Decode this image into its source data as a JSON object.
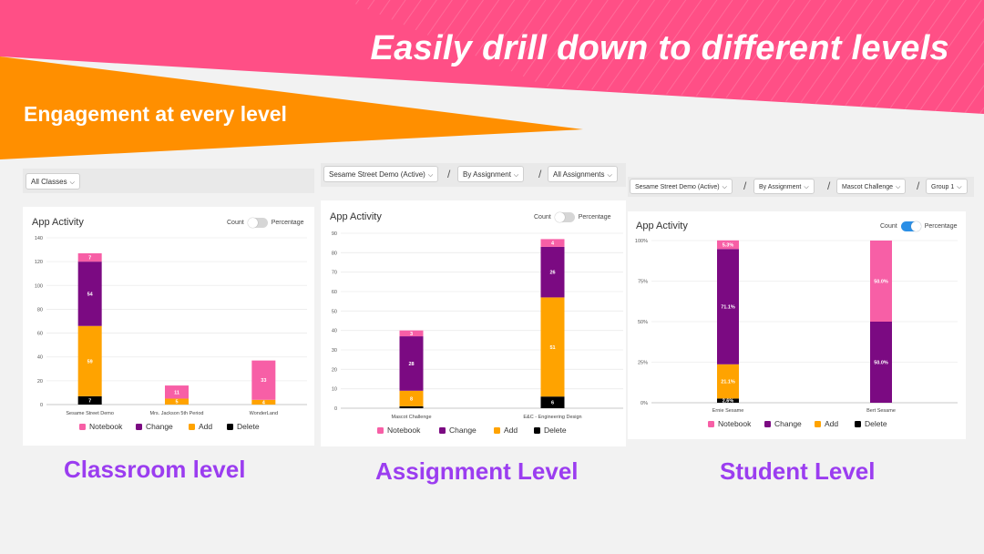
{
  "header": {
    "headline": "Easily drill down to different levels",
    "subheadline": "Engagement at every level"
  },
  "colors": {
    "pink": "#ff5a8f",
    "orange": "#ff9600",
    "notebook": "#f75fa6",
    "change": "#7b0a82",
    "add": "#ffa300",
    "delete": "#000000",
    "level_label": "#9b3df0"
  },
  "panels": [
    {
      "filters": [
        "All Classes"
      ],
      "title": "App Activity",
      "toggle": {
        "left": "Count",
        "right": "Percentage",
        "on": false
      },
      "level_label": "Classroom level"
    },
    {
      "filters": [
        "Sesame Street Demo (Active)",
        "By Assignment",
        "All Assignments"
      ],
      "title": "App Activity",
      "toggle": {
        "left": "Count",
        "right": "Percentage",
        "on": false
      },
      "level_label": "Assignment Level"
    },
    {
      "filters": [
        "Sesame Street Demo (Active)",
        "By Assignment",
        "Mascot Challenge",
        "Group 1"
      ],
      "title": "App Activity",
      "toggle": {
        "left": "Count",
        "right": "Percentage",
        "on": true
      },
      "level_label": "Student Level"
    }
  ],
  "chart_data": [
    {
      "type": "bar",
      "stacked": true,
      "categories": [
        "Sesame Street Demo",
        "Mrs. Jackson 5th Period",
        "WonderLand"
      ],
      "series": [
        {
          "name": "Delete",
          "color": "#000000",
          "values": [
            7,
            0,
            0
          ],
          "labels": [
            "7",
            "",
            ""
          ]
        },
        {
          "name": "Add",
          "color": "#ffa300",
          "values": [
            59,
            5,
            4
          ],
          "labels": [
            "59",
            "5",
            "4"
          ]
        },
        {
          "name": "Change",
          "color": "#7b0a82",
          "values": [
            54,
            0,
            0
          ],
          "labels": [
            "54",
            "",
            ""
          ]
        },
        {
          "name": "Notebook",
          "color": "#f75fa6",
          "values": [
            7,
            11,
            33
          ],
          "labels": [
            "7",
            "11",
            "33"
          ]
        }
      ],
      "yticks": [
        "0",
        "20",
        "40",
        "60",
        "80",
        "100",
        "120",
        "140"
      ],
      "ylim": [
        0,
        140
      ],
      "legend": [
        "Notebook",
        "Change",
        "Add",
        "Delete"
      ]
    },
    {
      "type": "bar",
      "stacked": true,
      "categories": [
        "Mascot Challenge",
        "E&C - Engineering Design"
      ],
      "series": [
        {
          "name": "Delete",
          "color": "#000000",
          "values": [
            1,
            6
          ],
          "labels": [
            "",
            "6"
          ]
        },
        {
          "name": "Add",
          "color": "#ffa300",
          "values": [
            8,
            51
          ],
          "labels": [
            "8",
            "51"
          ]
        },
        {
          "name": "Change",
          "color": "#7b0a82",
          "values": [
            28,
            26
          ],
          "labels": [
            "28",
            "26"
          ]
        },
        {
          "name": "Notebook",
          "color": "#f75fa6",
          "values": [
            3,
            4
          ],
          "labels": [
            "3",
            "4"
          ]
        }
      ],
      "yticks": [
        "0",
        "10",
        "20",
        "30",
        "40",
        "50",
        "60",
        "70",
        "80",
        "90"
      ],
      "ylim": [
        0,
        90
      ],
      "legend": [
        "Notebook",
        "Change",
        "Add",
        "Delete"
      ]
    },
    {
      "type": "bar",
      "stacked": true,
      "categories": [
        "Ernie Sesame",
        "Bert Sesame"
      ],
      "series": [
        {
          "name": "Delete",
          "color": "#000000",
          "values": [
            2.6,
            0
          ],
          "labels": [
            "2.6%",
            ""
          ]
        },
        {
          "name": "Add",
          "color": "#ffa300",
          "values": [
            21.1,
            0
          ],
          "labels": [
            "21.1%",
            ""
          ]
        },
        {
          "name": "Change",
          "color": "#7b0a82",
          "values": [
            71.1,
            50
          ],
          "labels": [
            "71.1%",
            "50.0%"
          ]
        },
        {
          "name": "Notebook",
          "color": "#f75fa6",
          "values": [
            5.3,
            50
          ],
          "labels": [
            "5.3%",
            "50.0%"
          ]
        }
      ],
      "yticks": [
        "0%",
        "25%",
        "50%",
        "75%",
        "100%"
      ],
      "ylim": [
        0,
        100
      ],
      "legend": [
        "Notebook",
        "Change",
        "Add",
        "Delete"
      ]
    }
  ]
}
